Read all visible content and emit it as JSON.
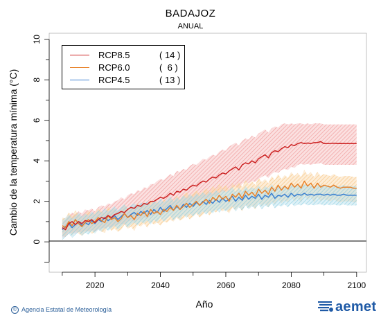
{
  "chart_data": {
    "type": "line",
    "title": "BADAJOZ",
    "subtitle": "ANUAL",
    "xlabel": "Año",
    "ylabel": "Cambio de la temperatura mínima (°C)",
    "xlim": [
      2006,
      2103
    ],
    "ylim": [
      -1.5,
      10.3
    ],
    "x_ticks": [
      2020,
      2040,
      2060,
      2080,
      2100
    ],
    "y_ticks": [
      0,
      2,
      4,
      6,
      8,
      10
    ],
    "grid": false,
    "legend_position": "top-left",
    "x_start": 2010,
    "series": [
      {
        "name": "RCP8.5",
        "count": "14",
        "color": "#cc2222",
        "band_color": "#f2a6a6",
        "values": [
          0.7,
          0.6,
          0.9,
          1.0,
          0.85,
          1.0,
          0.9,
          1.05,
          1.0,
          1.1,
          0.95,
          1.1,
          1.2,
          1.15,
          1.3,
          1.2,
          1.35,
          1.4,
          1.5,
          1.45,
          1.6,
          1.7,
          1.65,
          1.8,
          1.75,
          1.9,
          1.85,
          2.0,
          2.0,
          2.1,
          2.2,
          2.15,
          2.25,
          2.4,
          2.3,
          2.5,
          2.45,
          2.6,
          2.55,
          2.7,
          2.8,
          2.75,
          2.9,
          3.0,
          2.95,
          3.1,
          3.2,
          3.15,
          3.3,
          3.4,
          3.35,
          3.5,
          3.6,
          3.7,
          3.55,
          3.8,
          3.9,
          3.85,
          4.0,
          3.9,
          4.1,
          4.2,
          4.3,
          4.15,
          4.4,
          4.5,
          4.45,
          4.6,
          4.7,
          4.65,
          4.8,
          4.75,
          4.85,
          4.9,
          4.85,
          4.88,
          4.85,
          4.9,
          4.9,
          4.95,
          4.85,
          4.85,
          4.86,
          4.87,
          4.85,
          4.86,
          4.85,
          4.85,
          4.85,
          4.85,
          4.85
        ],
        "lower": [
          0.2,
          0.25,
          0.4,
          0.45,
          0.4,
          0.5,
          0.45,
          0.55,
          0.5,
          0.6,
          0.5,
          0.6,
          0.7,
          0.65,
          0.75,
          0.7,
          0.8,
          0.85,
          0.9,
          0.85,
          1.0,
          1.05,
          1.0,
          1.1,
          1.1,
          1.2,
          1.15,
          1.3,
          1.3,
          1.4,
          1.45,
          1.4,
          1.5,
          1.6,
          1.55,
          1.7,
          1.65,
          1.8,
          1.75,
          1.9,
          2.0,
          1.95,
          2.05,
          2.15,
          2.1,
          2.2,
          2.3,
          2.25,
          2.4,
          2.5,
          2.45,
          2.55,
          2.65,
          2.75,
          2.6,
          2.85,
          2.95,
          2.9,
          3.0,
          2.95,
          3.1,
          3.2,
          3.3,
          3.15,
          3.35,
          3.45,
          3.4,
          3.55,
          3.6,
          3.55,
          3.7,
          3.65,
          3.8,
          3.85,
          3.8,
          3.85,
          3.8,
          3.85,
          3.85,
          3.9,
          3.8,
          3.8,
          3.8,
          3.8,
          3.8,
          3.8,
          3.8,
          3.8,
          3.8,
          3.8,
          3.8
        ],
        "upper": [
          1.0,
          1.1,
          1.3,
          1.45,
          1.35,
          1.5,
          1.4,
          1.6,
          1.55,
          1.65,
          1.5,
          1.7,
          1.8,
          1.75,
          1.9,
          1.85,
          2.0,
          2.05,
          2.2,
          2.1,
          2.3,
          2.4,
          2.35,
          2.55,
          2.5,
          2.7,
          2.65,
          2.85,
          2.85,
          3.0,
          3.1,
          3.05,
          3.2,
          3.35,
          3.25,
          3.5,
          3.45,
          3.6,
          3.55,
          3.75,
          3.85,
          3.8,
          3.95,
          4.1,
          4.05,
          4.2,
          4.3,
          4.25,
          4.45,
          4.55,
          4.5,
          4.7,
          4.8,
          4.9,
          4.75,
          5.0,
          5.1,
          5.05,
          5.25,
          5.15,
          5.35,
          5.45,
          5.55,
          5.4,
          5.6,
          5.7,
          5.65,
          5.8,
          5.85,
          5.8,
          5.85,
          5.8,
          5.85,
          5.85,
          5.8,
          5.85,
          5.8,
          5.85,
          5.85,
          5.85,
          5.8,
          5.8,
          5.8,
          5.8,
          5.8,
          5.8,
          5.8,
          5.8,
          5.8,
          5.8,
          5.8
        ]
      },
      {
        "name": "RCP6.0",
        "count": " 6",
        "color": "#e8822a",
        "band_color": "#f8cc8f",
        "values": [
          0.8,
          0.7,
          1.0,
          0.8,
          1.1,
          0.9,
          0.75,
          0.95,
          1.1,
          0.9,
          1.0,
          1.2,
          1.05,
          0.95,
          1.3,
          1.1,
          1.2,
          1.0,
          1.15,
          1.4,
          1.2,
          1.3,
          1.1,
          1.4,
          1.3,
          1.5,
          1.25,
          1.6,
          1.4,
          1.5,
          1.35,
          1.6,
          1.5,
          1.7,
          1.55,
          1.8,
          1.6,
          1.75,
          1.9,
          1.7,
          1.85,
          2.0,
          1.8,
          1.95,
          2.1,
          1.9,
          2.2,
          2.05,
          2.3,
          2.1,
          2.25,
          2.0,
          2.35,
          2.2,
          2.4,
          2.15,
          2.5,
          2.3,
          2.45,
          2.25,
          2.6,
          2.4,
          2.55,
          2.35,
          2.7,
          2.5,
          2.8,
          2.55,
          2.75,
          2.6,
          2.9,
          2.7,
          2.85,
          2.65,
          3.0,
          2.75,
          2.9,
          2.65,
          2.9,
          2.7,
          2.8,
          2.75,
          2.7,
          2.8,
          2.7,
          2.65,
          2.7,
          2.7,
          2.7,
          2.65,
          2.65
        ],
        "lower": [
          0.3,
          0.25,
          0.5,
          0.3,
          0.55,
          0.4,
          0.3,
          0.45,
          0.55,
          0.4,
          0.5,
          0.65,
          0.5,
          0.45,
          0.75,
          0.55,
          0.65,
          0.5,
          0.6,
          0.85,
          0.65,
          0.75,
          0.55,
          0.85,
          0.75,
          0.9,
          0.7,
          1.0,
          0.85,
          0.95,
          0.8,
          1.0,
          0.95,
          1.1,
          1.0,
          1.2,
          1.05,
          1.15,
          1.3,
          1.1,
          1.25,
          1.4,
          1.2,
          1.35,
          1.5,
          1.3,
          1.55,
          1.45,
          1.65,
          1.5,
          1.6,
          1.4,
          1.7,
          1.55,
          1.75,
          1.5,
          1.85,
          1.65,
          1.8,
          1.6,
          1.95,
          1.75,
          1.9,
          1.7,
          2.0,
          1.85,
          2.1,
          1.9,
          2.05,
          1.95,
          2.2,
          2.0,
          2.15,
          1.95,
          2.3,
          2.05,
          2.2,
          1.95,
          2.2,
          2.0,
          2.1,
          2.05,
          2.0,
          2.1,
          2.0,
          1.95,
          2.0,
          2.0,
          2.0,
          1.95,
          1.95
        ],
        "upper": [
          1.2,
          1.15,
          1.45,
          1.25,
          1.55,
          1.35,
          1.2,
          1.4,
          1.55,
          1.35,
          1.45,
          1.65,
          1.5,
          1.4,
          1.75,
          1.55,
          1.65,
          1.45,
          1.6,
          1.85,
          1.65,
          1.75,
          1.55,
          1.9,
          1.8,
          1.95,
          1.75,
          2.1,
          1.9,
          2.0,
          1.85,
          2.1,
          2.0,
          2.2,
          2.05,
          2.3,
          2.1,
          2.3,
          2.45,
          2.25,
          2.4,
          2.55,
          2.35,
          2.5,
          2.65,
          2.45,
          2.75,
          2.6,
          2.85,
          2.65,
          2.8,
          2.55,
          2.9,
          2.75,
          2.95,
          2.7,
          3.05,
          2.85,
          3.0,
          2.8,
          3.15,
          2.95,
          3.1,
          2.9,
          3.25,
          3.05,
          3.35,
          3.1,
          3.3,
          3.15,
          3.45,
          3.25,
          3.4,
          3.2,
          3.55,
          3.3,
          3.45,
          3.2,
          3.45,
          3.25,
          3.35,
          3.3,
          3.25,
          3.35,
          3.25,
          3.2,
          3.25,
          3.25,
          3.25,
          3.2,
          3.2
        ]
      },
      {
        "name": "RCP4.5",
        "count": "13",
        "color": "#3a7fd0",
        "band_color": "#9fd6e6",
        "values": [
          0.6,
          0.75,
          0.9,
          0.7,
          0.85,
          1.0,
          0.8,
          0.95,
          0.85,
          1.05,
          0.9,
          1.1,
          1.0,
          1.2,
          1.05,
          1.15,
          1.3,
          1.1,
          1.25,
          1.4,
          1.2,
          1.35,
          1.45,
          1.3,
          1.5,
          1.4,
          1.55,
          1.35,
          1.6,
          1.45,
          1.7,
          1.5,
          1.65,
          1.8,
          1.55,
          1.75,
          1.6,
          1.85,
          1.7,
          1.9,
          1.75,
          1.95,
          1.8,
          2.0,
          1.85,
          2.05,
          1.9,
          2.1,
          1.95,
          2.15,
          2.0,
          2.1,
          2.25,
          2.0,
          2.2,
          2.05,
          2.3,
          2.1,
          2.25,
          2.15,
          2.35,
          2.1,
          2.3,
          2.2,
          2.4,
          2.15,
          2.3,
          2.25,
          2.35,
          2.2,
          2.4,
          2.25,
          2.35,
          2.3,
          2.4,
          2.3,
          2.35,
          2.3,
          2.35,
          2.35,
          2.3,
          2.35,
          2.3,
          2.35,
          2.3,
          2.3,
          2.35,
          2.3,
          2.3,
          2.3,
          2.3
        ],
        "lower": [
          0.1,
          0.25,
          0.4,
          0.2,
          0.35,
          0.5,
          0.3,
          0.45,
          0.35,
          0.55,
          0.4,
          0.6,
          0.5,
          0.7,
          0.55,
          0.65,
          0.8,
          0.6,
          0.75,
          0.9,
          0.7,
          0.85,
          0.95,
          0.8,
          1.0,
          0.9,
          1.05,
          0.85,
          1.1,
          0.95,
          1.2,
          1.0,
          1.15,
          1.3,
          1.05,
          1.25,
          1.1,
          1.35,
          1.2,
          1.4,
          1.25,
          1.45,
          1.3,
          1.5,
          1.35,
          1.55,
          1.4,
          1.6,
          1.45,
          1.65,
          1.5,
          1.6,
          1.75,
          1.5,
          1.7,
          1.55,
          1.8,
          1.6,
          1.75,
          1.65,
          1.85,
          1.6,
          1.8,
          1.7,
          1.9,
          1.65,
          1.8,
          1.75,
          1.85,
          1.7,
          1.9,
          1.75,
          1.85,
          1.8,
          1.9,
          1.8,
          1.85,
          1.8,
          1.85,
          1.85,
          1.8,
          1.85,
          1.8,
          1.85,
          1.8,
          1.8,
          1.85,
          1.8,
          1.8,
          1.8,
          1.8
        ],
        "upper": [
          1.05,
          1.2,
          1.35,
          1.15,
          1.3,
          1.45,
          1.25,
          1.4,
          1.3,
          1.5,
          1.35,
          1.55,
          1.45,
          1.65,
          1.5,
          1.6,
          1.75,
          1.55,
          1.7,
          1.85,
          1.65,
          1.8,
          1.9,
          1.75,
          1.95,
          1.85,
          2.0,
          1.8,
          2.05,
          1.9,
          2.15,
          1.95,
          2.1,
          2.25,
          2.0,
          2.2,
          2.05,
          2.3,
          2.15,
          2.35,
          2.2,
          2.4,
          2.25,
          2.45,
          2.3,
          2.5,
          2.35,
          2.55,
          2.4,
          2.6,
          2.45,
          2.55,
          2.7,
          2.45,
          2.65,
          2.5,
          2.75,
          2.55,
          2.7,
          2.6,
          2.8,
          2.55,
          2.75,
          2.65,
          2.85,
          2.6,
          2.75,
          2.7,
          2.8,
          2.65,
          2.85,
          2.7,
          2.8,
          2.75,
          2.85,
          2.75,
          2.8,
          2.75,
          2.8,
          2.8,
          2.75,
          2.8,
          2.75,
          2.8,
          2.75,
          2.75,
          2.8,
          2.75,
          2.75,
          2.75,
          2.75
        ]
      }
    ]
  },
  "footer": {
    "agency": "Agencia Estatal de Meteorología",
    "copyright_symbol": "©",
    "logo_text": "aemet"
  }
}
